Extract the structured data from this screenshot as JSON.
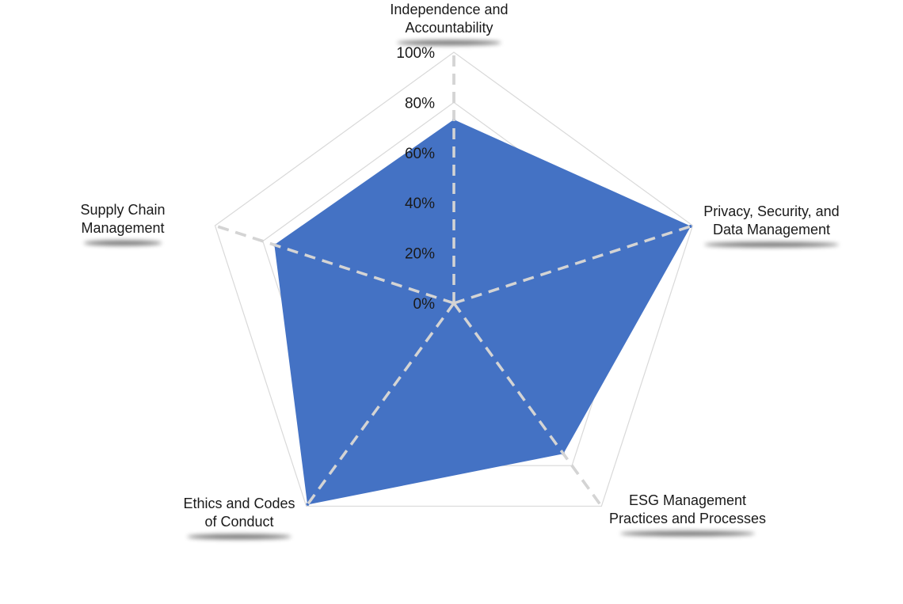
{
  "chart_data": {
    "type": "radar",
    "categories": [
      [
        "Independence and",
        "Accountability"
      ],
      [
        "Privacy, Security, and",
        "Data Management"
      ],
      [
        "ESG Management",
        "Practices and Processes"
      ],
      [
        "Ethics and Codes",
        "of Conduct"
      ],
      [
        "Supply Chain",
        "Management"
      ]
    ],
    "series": [
      {
        "values": [
          73,
          99,
          74,
          99,
          75
        ],
        "color": "#4472C4"
      }
    ],
    "rlim": [
      0,
      100
    ],
    "ticks": [
      "0%",
      "20%",
      "40%",
      "60%",
      "80%",
      "100%"
    ],
    "tick_values": [
      0,
      20,
      40,
      60,
      80,
      100
    ],
    "grid": true,
    "legend": "none"
  }
}
